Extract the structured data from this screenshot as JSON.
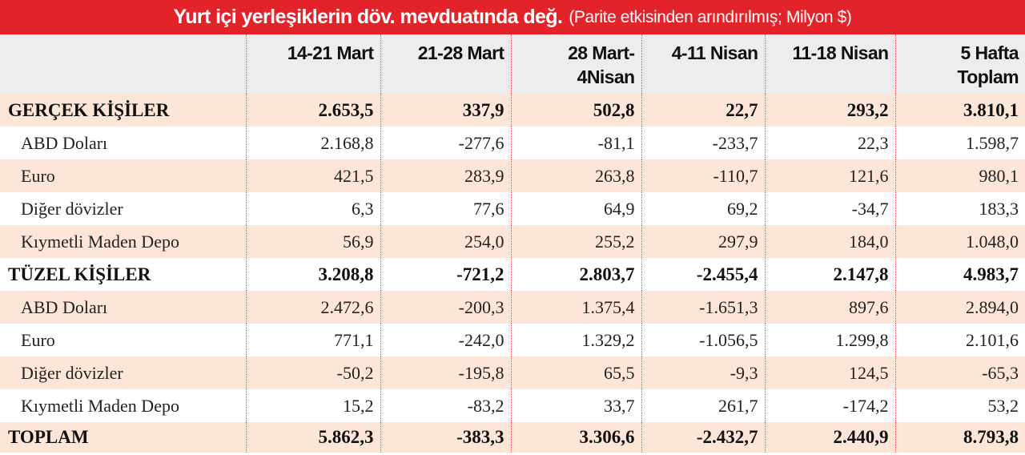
{
  "title": {
    "main": "Yurt içi yerleşiklerin döv. mevduatında değ.",
    "sub": "(Parite etkisinden arındırılmış; Milyon $)"
  },
  "columns": [
    "",
    "14-21 Mart",
    "21-28 Mart",
    "28 Mart-4Nisan",
    "4-11 Nisan",
    "11-18 Nisan",
    "5 Hafta Toplam"
  ],
  "rows": [
    {
      "label": "GERÇEK KİŞİLER",
      "values": [
        "2.653,5",
        "337,9",
        "502,8",
        "22,7",
        "293,2",
        "3.810,1"
      ]
    },
    {
      "label": "ABD Doları",
      "values": [
        "2.168,8",
        "-277,6",
        "-81,1",
        "-233,7",
        "22,3",
        "1.598,7"
      ]
    },
    {
      "label": "Euro",
      "values": [
        "421,5",
        "283,9",
        "263,8",
        "-110,7",
        "121,6",
        "980,1"
      ]
    },
    {
      "label": "Diğer dövizler",
      "values": [
        "6,3",
        "77,6",
        "64,9",
        "69,2",
        "-34,7",
        "183,3"
      ]
    },
    {
      "label": "Kıymetli Maden Depo",
      "values": [
        "56,9",
        "254,0",
        "255,2",
        "297,9",
        "184,0",
        "1.048,0"
      ]
    },
    {
      "label": "TÜZEL KİŞİLER",
      "values": [
        "3.208,8",
        "-721,2",
        "2.803,7",
        "-2.455,4",
        "2.147,8",
        "4.983,7"
      ]
    },
    {
      "label": "ABD Doları",
      "values": [
        "2.472,6",
        "-200,3",
        "1.375,4",
        "-1.651,3",
        "897,6",
        "2.894,0"
      ]
    },
    {
      "label": "Euro",
      "values": [
        "771,1",
        "-242,0",
        "1.329,2",
        "-1.056,5",
        "1.299,8",
        "2.101,6"
      ]
    },
    {
      "label": "Diğer dövizler",
      "values": [
        "-50,2",
        "-195,8",
        "65,5",
        "-9,3",
        "124,5",
        "-65,3"
      ]
    },
    {
      "label": "Kıymetli Maden Depo",
      "values": [
        "15,2",
        "-83,2",
        "33,7",
        "261,7",
        "-174,2",
        "53,2"
      ]
    },
    {
      "label": "TOPLAM",
      "values": [
        "5.862,3",
        "-383,3",
        "3.306,6",
        "-2.432,7",
        "2.440,9",
        "8.793,8"
      ]
    }
  ],
  "colors": {
    "title_bg": "#e3232a",
    "header_bg": "#ededed",
    "band_bg": "#fde6d7"
  }
}
